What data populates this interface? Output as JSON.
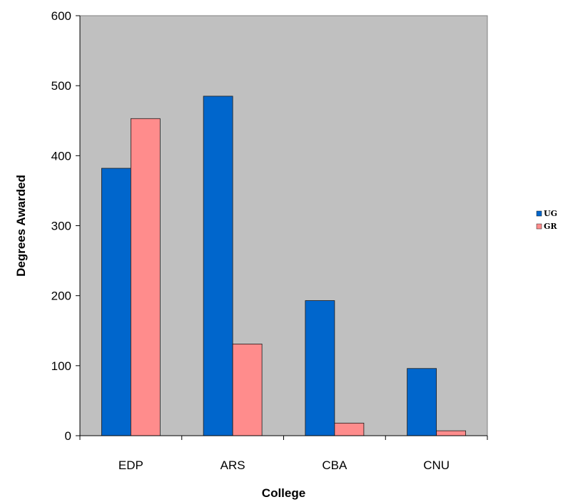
{
  "chart_data": {
    "type": "bar",
    "categories": [
      "EDP",
      "ARS",
      "CBA",
      "CNU"
    ],
    "series": [
      {
        "name": "UG",
        "values": [
          382,
          485,
          193,
          96
        ],
        "color": "#0066cc"
      },
      {
        "name": "GR",
        "values": [
          453,
          131,
          18,
          7
        ],
        "color": "#ff8c8c"
      }
    ],
    "xlabel": "College",
    "ylabel": "Degrees Awarded",
    "ylim": [
      0,
      600
    ],
    "yticks": [
      0,
      100,
      200,
      300,
      400,
      500,
      600
    ],
    "plot_background": "#c0c0c0",
    "grid": false,
    "legend_position": "right"
  }
}
